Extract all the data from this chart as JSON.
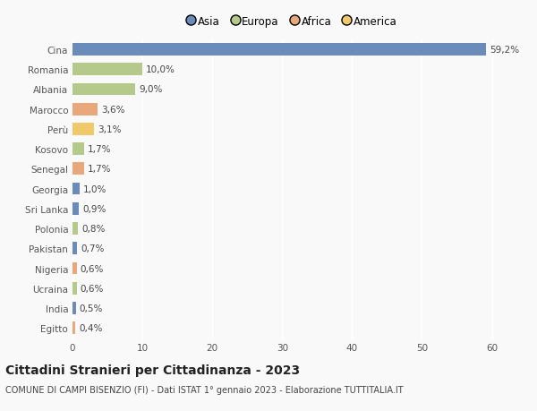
{
  "categories": [
    "Egitto",
    "India",
    "Ucraina",
    "Nigeria",
    "Pakistan",
    "Polonia",
    "Sri Lanka",
    "Georgia",
    "Senegal",
    "Kosovo",
    "Perù",
    "Marocco",
    "Albania",
    "Romania",
    "Cina"
  ],
  "values": [
    0.4,
    0.5,
    0.6,
    0.6,
    0.7,
    0.8,
    0.9,
    1.0,
    1.7,
    1.7,
    3.1,
    3.6,
    9.0,
    10.0,
    59.2
  ],
  "labels": [
    "0,4%",
    "0,5%",
    "0,6%",
    "0,6%",
    "0,7%",
    "0,8%",
    "0,9%",
    "1,0%",
    "1,7%",
    "1,7%",
    "3,1%",
    "3,6%",
    "9,0%",
    "10,0%",
    "59,2%"
  ],
  "colors": [
    "#e8a87c",
    "#6b8cba",
    "#b5c98a",
    "#e8a87c",
    "#6b8cba",
    "#b5c98a",
    "#6b8cba",
    "#6b8cba",
    "#e8a87c",
    "#b5c98a",
    "#f0c96b",
    "#e8a87c",
    "#b5c98a",
    "#b5c98a",
    "#6b8cba"
  ],
  "legend_labels": [
    "Asia",
    "Europa",
    "Africa",
    "America"
  ],
  "legend_colors": [
    "#6b8cba",
    "#b5c98a",
    "#e8a87c",
    "#f0c96b"
  ],
  "title": "Cittadini Stranieri per Cittadinanza - 2023",
  "subtitle": "COMUNE DI CAMPI BISENZIO (FI) - Dati ISTAT 1° gennaio 2023 - Elaborazione TUTTITALIA.IT",
  "xlim": [
    0,
    63
  ],
  "xticks": [
    0,
    10,
    20,
    30,
    40,
    50,
    60
  ],
  "background_color": "#f9f9f9",
  "bar_height": 0.62,
  "label_fontsize": 7.5,
  "tick_fontsize": 7.5,
  "title_fontsize": 10,
  "subtitle_fontsize": 7
}
